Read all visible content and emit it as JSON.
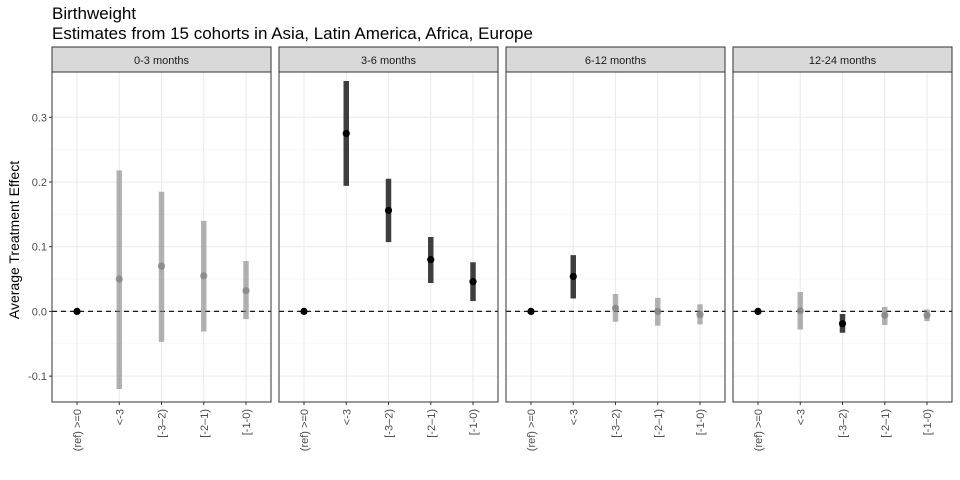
{
  "chart_data": {
    "type": "scatter",
    "title": "Birthweight",
    "subtitle": "Estimates from 15 cohorts in Asia, Latin America, Africa, Europe",
    "ylabel": "Average Treatment Effect",
    "ylim": [
      -0.14,
      0.37
    ],
    "yticks": [
      -0.1,
      0.0,
      0.1,
      0.2,
      0.3
    ],
    "ytick_labels": [
      "-0.1",
      "0.0",
      "0.1",
      "0.2",
      "0.3"
    ],
    "categories": [
      "(ref) >=0",
      "<-3",
      "[-3–2)",
      "[-2–1)",
      "[-1-0)"
    ],
    "reference_line": 0,
    "grid": true,
    "colors": {
      "significant": "#000000",
      "nonsignificant": "#808080",
      "strip_fill": "#d9d9d9",
      "grid": "#ebebeb"
    },
    "panels": [
      {
        "name": "0-3 months",
        "points": [
          {
            "x": "(ref) >=0",
            "y": 0.0,
            "lo": 0.0,
            "hi": 0.0,
            "sig": true
          },
          {
            "x": "<-3",
            "y": 0.05,
            "lo": -0.12,
            "hi": 0.218,
            "sig": false
          },
          {
            "x": "[-3–2)",
            "y": 0.07,
            "lo": -0.047,
            "hi": 0.185,
            "sig": false
          },
          {
            "x": "[-2–1)",
            "y": 0.055,
            "lo": -0.031,
            "hi": 0.14,
            "sig": false
          },
          {
            "x": "[-1-0)",
            "y": 0.032,
            "lo": -0.012,
            "hi": 0.078,
            "sig": false
          }
        ]
      },
      {
        "name": "3-6 months",
        "points": [
          {
            "x": "(ref) >=0",
            "y": 0.0,
            "lo": 0.0,
            "hi": 0.0,
            "sig": true
          },
          {
            "x": "<-3",
            "y": 0.275,
            "lo": 0.194,
            "hi": 0.356,
            "sig": true
          },
          {
            "x": "[-3–2)",
            "y": 0.156,
            "lo": 0.107,
            "hi": 0.205,
            "sig": true
          },
          {
            "x": "[-2–1)",
            "y": 0.08,
            "lo": 0.044,
            "hi": 0.115,
            "sig": true
          },
          {
            "x": "[-1-0)",
            "y": 0.046,
            "lo": 0.016,
            "hi": 0.076,
            "sig": true
          }
        ]
      },
      {
        "name": "6-12 months",
        "points": [
          {
            "x": "(ref) >=0",
            "y": 0.0,
            "lo": 0.0,
            "hi": 0.0,
            "sig": true
          },
          {
            "x": "<-3",
            "y": 0.054,
            "lo": 0.02,
            "hi": 0.087,
            "sig": true
          },
          {
            "x": "[-3–2)",
            "y": 0.005,
            "lo": -0.016,
            "hi": 0.027,
            "sig": false
          },
          {
            "x": "[-2–1)",
            "y": 0.0,
            "lo": -0.022,
            "hi": 0.021,
            "sig": false
          },
          {
            "x": "[-1-0)",
            "y": -0.005,
            "lo": -0.02,
            "hi": 0.011,
            "sig": false
          }
        ]
      },
      {
        "name": "12-24 months",
        "points": [
          {
            "x": "(ref) >=0",
            "y": 0.0,
            "lo": 0.0,
            "hi": 0.0,
            "sig": true
          },
          {
            "x": "<-3",
            "y": 0.001,
            "lo": -0.028,
            "hi": 0.03,
            "sig": false
          },
          {
            "x": "[-3–2)",
            "y": -0.019,
            "lo": -0.033,
            "hi": -0.004,
            "sig": true
          },
          {
            "x": "[-2–1)",
            "y": -0.006,
            "lo": -0.021,
            "hi": 0.007,
            "sig": false
          },
          {
            "x": "[-1-0)",
            "y": -0.006,
            "lo": -0.015,
            "hi": 0.003,
            "sig": false
          }
        ]
      }
    ]
  }
}
